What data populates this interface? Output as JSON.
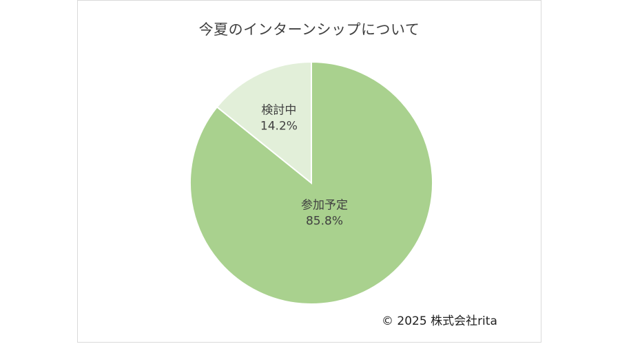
{
  "chart_data": {
    "type": "pie",
    "title": "今夏のインターンシップについて",
    "slices": [
      {
        "label": "参加予定",
        "value": 85.8,
        "display": "85.8%",
        "color": "#a9d18e"
      },
      {
        "label": "検討中",
        "value": 14.2,
        "display": "14.2%",
        "color": "#e2efd9"
      }
    ],
    "start": "12 o'clock",
    "direction": "clockwise",
    "legend": "none",
    "labels": "inside"
  },
  "colors": {
    "border": "#d9d9d9",
    "slice_separator": "#ffffff",
    "text": "#404040"
  },
  "footer": {
    "copyright": "© 2025 株式会社rita"
  }
}
